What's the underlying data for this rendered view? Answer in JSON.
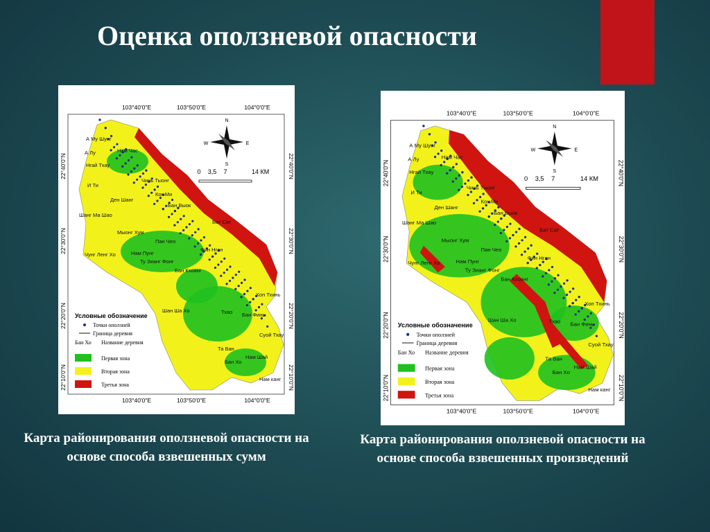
{
  "title": "Оценка оползневой опасности",
  "maps": [
    {
      "caption": "Карта районирования оползневой опасности на основе способа взвешенных сумм",
      "top_labels": [
        "103°40'0\"E",
        "103°50'0\"E",
        "104°0'0\"E"
      ],
      "bottom_labels": [
        "103°40'0\"E",
        "103°50'0\"E",
        "104°0'0\"E"
      ],
      "left_labels": [
        "22°40'0\"N",
        "22°30'0\"N",
        "22°20'0\"N",
        "22°10'0\"N"
      ],
      "right_labels": [
        "22°40'0\"N",
        "22°30'0\"N",
        "22°20'0\"N",
        "22°10'0\"N"
      ],
      "compass": [
        "N",
        "E",
        "S",
        "W"
      ],
      "scale": [
        "0",
        "3,5",
        "7",
        "14 КМ"
      ],
      "legend": {
        "title": "Условные обозначение",
        "points": "Точки оползней",
        "border": "Граница деревня",
        "village_example": "Бан Хо",
        "village_name": "Название деревня",
        "zones": [
          {
            "label": "Первая зона",
            "color": "#1fc11f"
          },
          {
            "label": "Вторая зона",
            "color": "#f2f21a"
          },
          {
            "label": "Третья зона",
            "color": "#d0140f"
          }
        ]
      },
      "villages": [
        "А Му Шунг",
        "Нам Час",
        "А Лу",
        "Нгай Тхау",
        "И Ти",
        "Чинь Тыонг",
        "Кок Ми",
        "Ден Шанг",
        "Бан Выок",
        "Шанг Ма Шао",
        "Мыонг Хум",
        "Пан Чео",
        "Бат Сат",
        "Чунг Ленг Хо",
        "Нам Пунг",
        "Ту Зианг Фонг",
        "Бан Кхоанг",
        "Фин Нган",
        "Хоп Тхинь",
        "Шан Ша Хо",
        "Тхао",
        "Бан Финь",
        "Суой Тхау",
        "Та Ван",
        "Бан Хо",
        "Нам Шай",
        "Нам канг"
      ]
    },
    {
      "caption": "Карта районирования оползневой опасности на основе способа взвешенных произведений",
      "top_labels": [
        "103°40'0\"E",
        "103°50'0\"E",
        "104°0'0\"E"
      ],
      "bottom_labels": [
        "103°40'0\"E",
        "103°50'0\"E",
        "104°0'0\"E"
      ],
      "left_labels": [
        "22°40'0\"N",
        "22°30'0\"N",
        "22°20'0\"N",
        "22°10'0\"N"
      ],
      "right_labels": [
        "22°40'0\"N",
        "22°30'0\"N",
        "22°20'0\"N",
        "22°10'0\"N"
      ],
      "compass": [
        "N",
        "E",
        "S",
        "W"
      ],
      "scale": [
        "0",
        "3,5",
        "7",
        "14 КМ"
      ],
      "legend": {
        "title": "Условные обозначение",
        "points": "Точки оползней",
        "border": "Граница деревня",
        "village_example": "Бан Хо",
        "village_name": "Название деревня",
        "zones": [
          {
            "label": "Первая зона",
            "color": "#1fc11f"
          },
          {
            "label": "Вторая зона",
            "color": "#f2f21a"
          },
          {
            "label": "Третья зона",
            "color": "#d0140f"
          }
        ]
      },
      "villages": [
        "А Му Шунг",
        "Нам Час",
        "А Лу",
        "Нгай Тхау",
        "И Ти",
        "Чинь Тыонг",
        "Кок Ми",
        "Ден Шанг",
        "Бан Выок",
        "Шанг Ма Шао",
        "Мыонг Хум",
        "Пан Чео",
        "Бат Сат",
        "Чунг Ленг Хо",
        "Нам Пунг",
        "Ту Зианг Фонг",
        "Бан Кхоанг",
        "Фин Нган",
        "Хоп Тхинь",
        "Шан Ша Хо",
        "Тхао",
        "Бан Финь",
        "Суой Тхау",
        "Та Ван",
        "Бан Хо",
        "Нам Шай",
        "Нам канг"
      ]
    }
  ]
}
